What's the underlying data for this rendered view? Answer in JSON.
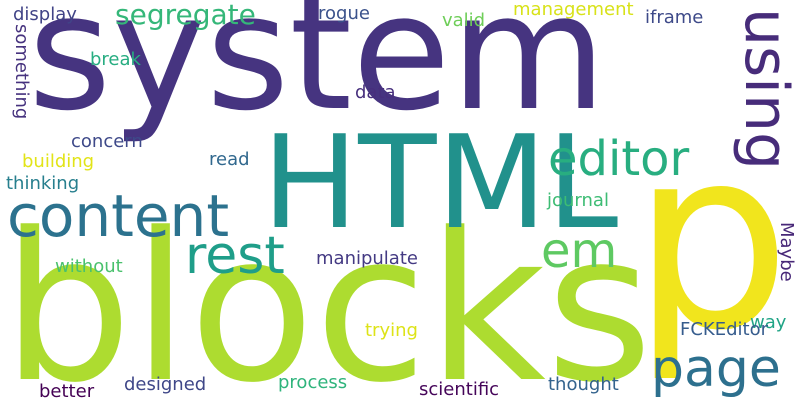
{
  "word_cloud": {
    "words": [
      {
        "text": "system",
        "color": "#463480"
      },
      {
        "text": "blocks",
        "color": "#addc30"
      },
      {
        "text": "HTML",
        "color": "#21918c"
      },
      {
        "text": "p",
        "color": "#f1e51d"
      },
      {
        "text": "content",
        "color": "#2c728e"
      },
      {
        "text": "using",
        "color": "#472c7a"
      },
      {
        "text": "editor",
        "color": "#28ae80"
      },
      {
        "text": "rest",
        "color": "#1f9e89"
      },
      {
        "text": "page",
        "color": "#2d708e"
      },
      {
        "text": "em",
        "color": "#5ec962"
      },
      {
        "text": "segregate",
        "color": "#35b779"
      },
      {
        "text": "display",
        "color": "#414487"
      },
      {
        "text": "something",
        "color": "#46327e"
      },
      {
        "text": "rogue",
        "color": "#3b528b"
      },
      {
        "text": "valid",
        "color": "#6ece58"
      },
      {
        "text": "management",
        "color": "#d8e219"
      },
      {
        "text": "iframe",
        "color": "#3e4a89"
      },
      {
        "text": "break",
        "color": "#27ad81"
      },
      {
        "text": "data",
        "color": "#472f7d"
      },
      {
        "text": "concern",
        "color": "#3e4989"
      },
      {
        "text": "building",
        "color": "#e2e418"
      },
      {
        "text": "read",
        "color": "#31688e"
      },
      {
        "text": "thinking",
        "color": "#277f8e"
      },
      {
        "text": "journal",
        "color": "#3dbc74"
      },
      {
        "text": "without",
        "color": "#4ac16d"
      },
      {
        "text": "manipulate",
        "color": "#443a83"
      },
      {
        "text": "Maybe",
        "color": "#482878"
      },
      {
        "text": "way",
        "color": "#20a486"
      },
      {
        "text": "trying",
        "color": "#dde318"
      },
      {
        "text": "FCKEditor",
        "color": "#365c8d"
      },
      {
        "text": "better",
        "color": "#440154"
      },
      {
        "text": "designed",
        "color": "#3f4788"
      },
      {
        "text": "process",
        "color": "#2fb47c"
      },
      {
        "text": "scientific",
        "color": "#450559"
      },
      {
        "text": "thought",
        "color": "#33638d"
      }
    ]
  }
}
